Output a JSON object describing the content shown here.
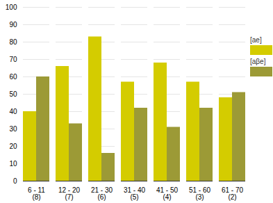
{
  "chart_data": {
    "type": "bar",
    "categories": [
      "6 - 11\n(8)",
      "12 - 20\n(7)",
      "21 - 30\n(6)",
      "31 - 40\n(5)",
      "41 - 50\n(4)",
      "51 - 60\n(3)",
      "61 - 70\n(2)"
    ],
    "series": [
      {
        "name": "[ae]",
        "color": "#d4cc00",
        "values": [
          40,
          66,
          83,
          57,
          68,
          57,
          48
        ]
      },
      {
        "name": "[aβe]",
        "color": "#9c9a36",
        "values": [
          60,
          33,
          16,
          42,
          31,
          42,
          51
        ]
      }
    ],
    "ylim": [
      0,
      100
    ],
    "yticks": [
      0,
      10,
      20,
      30,
      40,
      50,
      60,
      70,
      80,
      90,
      100
    ],
    "grid": true,
    "legend": "right"
  }
}
